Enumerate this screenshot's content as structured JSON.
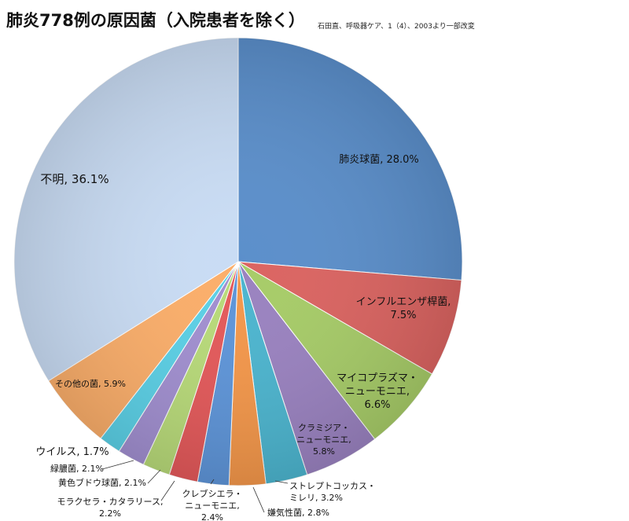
{
  "title": "肺炎778例の原因菌（入院患者を除く）",
  "source": "石田直、呼吸器ケア、1（4）、2003より一部改変",
  "chart_data": {
    "type": "pie",
    "title": "肺炎778例の原因菌（入院患者を除く）",
    "slices": [
      {
        "name": "肺炎球菌",
        "value": 28.0,
        "label": "肺炎球菌, 28.0%",
        "color": "#5b8fcb"
      },
      {
        "name": "インフルエンザ桿菌",
        "value": 7.5,
        "label": "インフルエンザ桿菌, 7.5%",
        "color": "#db6461"
      },
      {
        "name": "マイコプラズマ・ニューモニエ",
        "value": 6.6,
        "label": "マイコプラズマ・ニューモニエ, 6.6%",
        "color": "#a7cc68"
      },
      {
        "name": "クラミジア・ニューモニエ",
        "value": 5.8,
        "label": "クラミジア・ニューモニエ, 5.8%",
        "color": "#9a82c0"
      },
      {
        "name": "ストレプトコッカス・ミレリ",
        "value": 3.2,
        "label": "ストレプトコッカス・ミレリ, 3.2%",
        "color": "#4cb5cf"
      },
      {
        "name": "嫌気性菌",
        "value": 2.8,
        "label": "嫌気性菌, 2.8%",
        "color": "#f4974a"
      },
      {
        "name": "クレブシエラ・ニューモニエ",
        "value": 2.4,
        "label": "クレブシエラ・ニューモニエ, 2.4%",
        "color": "#5e95d9"
      },
      {
        "name": "モラクセラ・カタラリース",
        "value": 2.2,
        "label": "モラクセラ・カタラリース, 2.2%",
        "color": "#e4595a"
      },
      {
        "name": "黄色ブドウ球菌",
        "value": 2.1,
        "label": "黄色ブドウ球菌, 2.1%",
        "color": "#b8da79"
      },
      {
        "name": "緑膿菌",
        "value": 2.1,
        "label": "緑膿菌, 2.1%",
        "color": "#a18fd0"
      },
      {
        "name": "ウイルス",
        "value": 1.7,
        "label": "ウイルス, 1.7%",
        "color": "#5bd0e6"
      },
      {
        "name": "その他の菌",
        "value": 5.9,
        "label": "その他の菌, 5.9%",
        "color": "#fbae6a"
      },
      {
        "name": "不明",
        "value": 36.1,
        "label": "不明, 36.1%",
        "color": "#c9dcf4"
      }
    ]
  }
}
